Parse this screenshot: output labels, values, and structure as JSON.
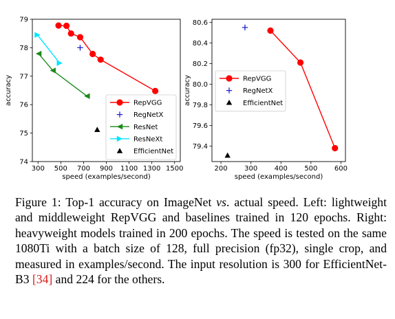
{
  "chart_data": [
    {
      "type": "line",
      "xlabel": "speed (examples/second)",
      "ylabel": "accuracy",
      "xlim": [
        250,
        1550
      ],
      "ylim": [
        74,
        79
      ],
      "xticks": [
        300,
        500,
        700,
        900,
        1100,
        1300,
        1500
      ],
      "yticks": [
        74,
        75,
        76,
        77,
        78,
        79
      ],
      "tick_labels_x": [
        "300",
        "500",
        "700",
        "900",
        "1100",
        "1300",
        "1500"
      ],
      "tick_labels_y": [
        "74",
        "75",
        "76",
        "77",
        "78",
        "79"
      ],
      "grid": false,
      "legend": "lower-right",
      "series": [
        {
          "name": "RepVGG",
          "marker": "circle",
          "color": "#ff0000",
          "line": true,
          "x": [
            480,
            550,
            590,
            670,
            780,
            850,
            1330
          ],
          "y": [
            78.78,
            78.77,
            78.5,
            78.37,
            77.78,
            77.58,
            76.48
          ]
        },
        {
          "name": "RegNetX",
          "marker": "plus",
          "color": "#1f1fd0",
          "line": false,
          "x": [
            670
          ],
          "y": [
            78.0
          ]
        },
        {
          "name": "ResNet",
          "marker": "triangle-left",
          "color": "#1a8a1a",
          "line": true,
          "x": [
            305,
            430,
            730
          ],
          "y": [
            77.79,
            77.2,
            76.3
          ]
        },
        {
          "name": "ResNeXt",
          "marker": "triangle-right",
          "color": "#00e5ff",
          "line": true,
          "x": [
            295,
            490
          ],
          "y": [
            78.45,
            77.46
          ]
        },
        {
          "name": "EfficientNet",
          "marker": "triangle-up",
          "color": "#000000",
          "line": false,
          "x": [
            820
          ],
          "y": [
            75.12
          ]
        }
      ]
    },
    {
      "type": "line",
      "xlabel": "speed (examples/second)",
      "ylabel": "accuracy",
      "xlim": [
        170,
        615
      ],
      "ylim": [
        79.25,
        80.63
      ],
      "xticks": [
        200,
        300,
        400,
        500,
        600
      ],
      "yticks": [
        79.4,
        79.6,
        79.8,
        80.0,
        80.2,
        80.4,
        80.6
      ],
      "tick_labels_x": [
        "200",
        "300",
        "400",
        "500",
        "600"
      ],
      "tick_labels_y": [
        "79.4",
        "79.6",
        "79.8",
        "80.0",
        "80.2",
        "80.4",
        "80.6"
      ],
      "grid": false,
      "legend": "upper-left",
      "series": [
        {
          "name": "RepVGG",
          "marker": "circle",
          "color": "#ff0000",
          "line": true,
          "x": [
            365,
            465,
            580
          ],
          "y": [
            80.52,
            80.21,
            79.38
          ]
        },
        {
          "name": "RegNetX",
          "marker": "plus",
          "color": "#1f1fd0",
          "line": false,
          "x": [
            280
          ],
          "y": [
            80.55
          ]
        },
        {
          "name": "EfficientNet",
          "marker": "triangle-up",
          "color": "#000000",
          "line": false,
          "x": [
            222
          ],
          "y": [
            79.31
          ]
        }
      ]
    }
  ],
  "caption": {
    "intro": "Figure 1: Top-1 accuracy on ImageNet ",
    "vs": "vs",
    "body": ". actual speed. Left: lightweight and middleweight RepVGG and baselines trained in 120 epochs. Right: heavyweight models trained in 200 epochs. The speed is tested on the same 1080Ti with a batch size of 128, full precision (fp32), single crop, and measured in examples/second. The input resolution is 300 for EfficientNet-B3 ",
    "cite": "[34]",
    "end": " and 224 for the others."
  }
}
